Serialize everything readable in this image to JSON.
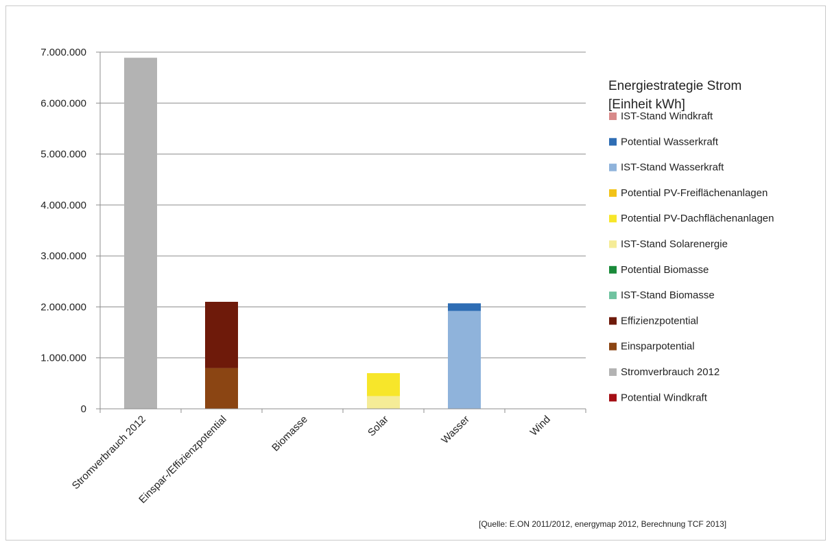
{
  "chart_data": {
    "type": "bar",
    "stacked": true,
    "title": "",
    "xlabel": "",
    "ylabel": "",
    "ylim": [
      0,
      7000000
    ],
    "y_ticks": [
      0,
      1000000,
      2000000,
      3000000,
      4000000,
      5000000,
      6000000,
      7000000
    ],
    "y_tick_labels": [
      "0",
      "1.000.000",
      "2.000.000",
      "3.000.000",
      "4.000.000",
      "5.000.000",
      "6.000.000",
      "7.000.000"
    ],
    "grid": true,
    "categories": [
      "Stromverbrauch 2012",
      "Einspar-/Effizienzpotential",
      "Biomasse",
      "Solar",
      "Wasser",
      "Wind"
    ],
    "legend_title": [
      "Energiestrategie Strom",
      "[Einheit kWh]"
    ],
    "legend_position": "right",
    "series": [
      {
        "name": "Potential Windkraft",
        "color": "#a50f15",
        "values": [
          0,
          0,
          0,
          0,
          0,
          0
        ]
      },
      {
        "name": "Stromverbrauch 2012",
        "color": "#b3b3b3",
        "values": [
          6890000,
          0,
          0,
          0,
          0,
          0
        ]
      },
      {
        "name": "Einsparpotential",
        "color": "#8b4513",
        "values": [
          0,
          800000,
          0,
          0,
          0,
          0
        ]
      },
      {
        "name": "Effizienzpotential",
        "color": "#6e1a0a",
        "values": [
          0,
          1300000,
          0,
          0,
          0,
          0
        ]
      },
      {
        "name": "IST-Stand Biomasse",
        "color": "#6fc3a0",
        "values": [
          0,
          0,
          0,
          0,
          0,
          0
        ]
      },
      {
        "name": "Potential Biomasse",
        "color": "#1a8a3a",
        "values": [
          0,
          0,
          0,
          0,
          0,
          0
        ]
      },
      {
        "name": "IST-Stand Solarenergie",
        "color": "#f5ec97",
        "values": [
          0,
          0,
          0,
          250000,
          0,
          0
        ]
      },
      {
        "name": "Potential PV-Dachflächenanlagen",
        "color": "#f7e62a",
        "values": [
          0,
          0,
          0,
          450000,
          0,
          0
        ]
      },
      {
        "name": "Potential PV-Freiflächenanlagen",
        "color": "#f2c318",
        "values": [
          0,
          0,
          0,
          0,
          0,
          0
        ]
      },
      {
        "name": "IST-Stand Wasserkraft",
        "color": "#8fb3db",
        "values": [
          0,
          0,
          0,
          0,
          1920000,
          0
        ]
      },
      {
        "name": "Potential Wasserkraft",
        "color": "#2e6db4",
        "values": [
          0,
          0,
          0,
          0,
          150000,
          0
        ]
      },
      {
        "name": "IST-Stand Windkraft",
        "color": "#d88a8a",
        "values": [
          0,
          0,
          0,
          0,
          0,
          0
        ]
      }
    ],
    "source": "[Quelle: E.ON 2011/2012, energymap 2012,  Berechnung TCF 2013]"
  }
}
